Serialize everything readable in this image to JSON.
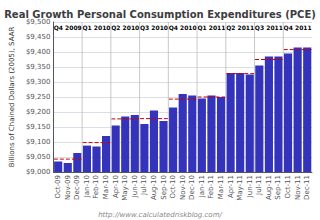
{
  "chart_data": {
    "type": "bar",
    "title": "Real Growth Personal Consumption Expenditures (PCE)",
    "ylabel": "Billions of Chained Dollars (2005), SAAR",
    "annotations": [
      "http://www.calculatedriskblog.com/"
    ],
    "categories": [
      "Oct-09",
      "Nov-09",
      "Dec-09",
      "Jan-10",
      "Feb-10",
      "Mar-10",
      "Apr-10",
      "May-10",
      "Jun-10",
      "Jul-10",
      "Aug-10",
      "Sep-10",
      "Oct-10",
      "Nov-10",
      "Dec-10",
      "Jan-11",
      "Feb-11",
      "Mar-11",
      "Apr-11",
      "May-11",
      "Jun-11",
      "Jul-11",
      "Aug-11",
      "Sep-11",
      "Oct-11",
      "Nov-11",
      "Dec-11"
    ],
    "values": [
      9035,
      9030,
      9063,
      9088,
      9085,
      9120,
      9155,
      9185,
      9190,
      9160,
      9205,
      9170,
      9215,
      9260,
      9255,
      9245,
      9255,
      9250,
      9330,
      9330,
      9325,
      9355,
      9385,
      9385,
      9395,
      9415,
      9415
    ],
    "color": "#3333bb",
    "ylim": [
      9000,
      9500
    ],
    "yticks": [
      {
        "value": 9000,
        "label": "$9,000"
      },
      {
        "value": 9050,
        "label": "$9,050"
      },
      {
        "value": 9100,
        "label": "$9,100"
      },
      {
        "value": 9150,
        "label": "$9,150"
      },
      {
        "value": 9200,
        "label": "$9,200"
      },
      {
        "value": 9250,
        "label": "$9,250"
      },
      {
        "value": 9300,
        "label": "$9,300"
      },
      {
        "value": 9350,
        "label": "$9,350"
      },
      {
        "value": 9400,
        "label": "$9,400"
      },
      {
        "value": 9450,
        "label": "$9,450"
      },
      {
        "value": 9500,
        "label": "$9,500"
      }
    ],
    "grid": true,
    "reference_lines": {
      "color": "#cc0000",
      "line_style": "dashed",
      "items": [
        {
          "label": "Q4 2009",
          "start": "Oct-09",
          "end": "Dec-09",
          "value": 9043
        },
        {
          "label": "Q1 2010",
          "start": "Jan-10",
          "end": "Mar-10",
          "value": 9098
        },
        {
          "label": "Q2 2010",
          "start": "Apr-10",
          "end": "Jun-10",
          "value": 9177
        },
        {
          "label": "Q3 2010",
          "start": "Jul-10",
          "end": "Sep-10",
          "value": 9178
        },
        {
          "label": "Q4 2010",
          "start": "Oct-10",
          "end": "Dec-10",
          "value": 9243
        },
        {
          "label": "Q1 2011",
          "start": "Jan-11",
          "end": "Mar-11",
          "value": 9250
        },
        {
          "label": "Q2 2011",
          "start": "Apr-11",
          "end": "Jun-11",
          "value": 9328
        },
        {
          "label": "Q3 2011",
          "start": "Jul-11",
          "end": "Sep-11",
          "value": 9375
        },
        {
          "label": "Q4 2011",
          "start": "Oct-11",
          "end": "Dec-11",
          "value": 9408
        }
      ]
    }
  }
}
